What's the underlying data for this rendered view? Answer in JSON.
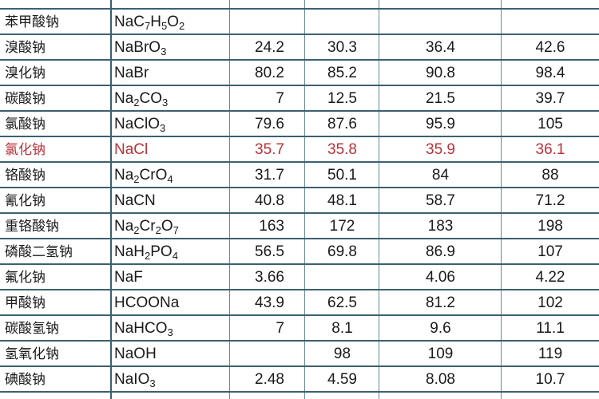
{
  "table": {
    "rows": [
      {
        "name": "苯甲酸钠",
        "formula": "NaC7H5O2",
        "values": [
          "",
          "",
          "",
          ""
        ]
      },
      {
        "name": "溴酸钠",
        "formula": "NaBrO3",
        "values": [
          "24.2",
          "30.3",
          "36.4",
          "42.6"
        ]
      },
      {
        "name": "溴化钠",
        "formula": "NaBr",
        "values": [
          "80.2",
          "85.2",
          "90.8",
          "98.4"
        ]
      },
      {
        "name": "碳酸钠",
        "formula": "Na2CO3",
        "values": [
          "7",
          "12.5",
          "21.5",
          "39.7"
        ]
      },
      {
        "name": "氯酸钠",
        "formula": "NaClO3",
        "values": [
          "79.6",
          "87.6",
          "95.9",
          "105"
        ]
      },
      {
        "name": "氯化钠",
        "formula": "NaCl",
        "values": [
          "35.7",
          "35.8",
          "35.9",
          "36.1"
        ],
        "highlight": true
      },
      {
        "name": "铬酸钠",
        "formula": "Na2CrO4",
        "values": [
          "31.7",
          "50.1",
          "84",
          "88"
        ]
      },
      {
        "name": "氰化钠",
        "formula": "NaCN",
        "values": [
          "40.8",
          "48.1",
          "58.7",
          "71.2"
        ]
      },
      {
        "name": "重铬酸钠",
        "formula": "Na2Cr2O7",
        "values": [
          "163",
          "172",
          "183",
          "198"
        ]
      },
      {
        "name": "磷酸二氢钠",
        "formula": "NaH2PO4",
        "values": [
          "56.5",
          "69.8",
          "86.9",
          "107"
        ]
      },
      {
        "name": "氟化钠",
        "formula": "NaF",
        "values": [
          "3.66",
          "",
          "4.06",
          "4.22"
        ]
      },
      {
        "name": "甲酸钠",
        "formula": "HCOONa",
        "values": [
          "43.9",
          "62.5",
          "81.2",
          "102"
        ]
      },
      {
        "name": "碳酸氢钠",
        "formula": "NaHCO3",
        "values": [
          "7",
          "8.1",
          "9.6",
          "11.1"
        ]
      },
      {
        "name": "氢氧化钠",
        "formula": "NaOH",
        "values": [
          "",
          "98",
          "109",
          "119"
        ]
      },
      {
        "name": "碘酸钠",
        "formula": "NaIO3",
        "values": [
          "2.48",
          "4.59",
          "8.08",
          "10.7"
        ]
      }
    ]
  },
  "colors": {
    "highlight": "#b8323a",
    "grid": "#3d6070",
    "text": "#1a1a1a"
  }
}
